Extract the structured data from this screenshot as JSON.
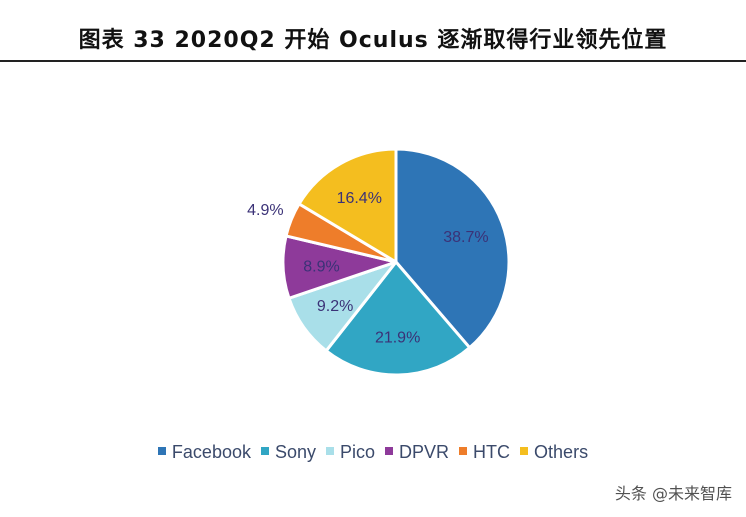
{
  "header": {
    "title": "图表 33 2020Q2 开始 Oculus 逐渐取得行业领先位置"
  },
  "chart_data": {
    "type": "pie",
    "title": "",
    "legend_position": "bottom",
    "slices": [
      {
        "name": "Facebook",
        "value": 38.7,
        "label": "38.7%",
        "color": "#2e75b6"
      },
      {
        "name": "Sony",
        "value": 21.9,
        "label": "21.9%",
        "color": "#31a6c4"
      },
      {
        "name": "Pico",
        "value": 9.2,
        "label": "9.2%",
        "color": "#a9dfe9"
      },
      {
        "name": "DPVR",
        "value": 8.9,
        "label": "8.9%",
        "color": "#8e3a9a"
      },
      {
        "name": "HTC",
        "value": 4.9,
        "label": "4.9%",
        "color": "#ee7d2a"
      },
      {
        "name": "Others",
        "value": 16.4,
        "label": "16.4%",
        "color": "#f4be1f"
      }
    ]
  },
  "watermark": {
    "text": "头条 @未来智库"
  },
  "colors": {
    "label_text": "#3b3277",
    "slice_border": "#ffffff"
  }
}
